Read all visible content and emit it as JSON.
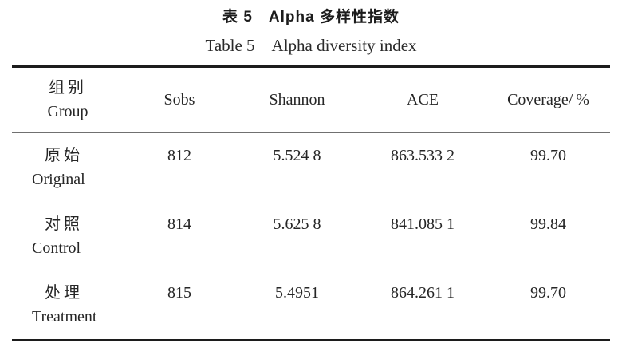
{
  "caption": {
    "zh": "表 5　Alpha 多样性指数",
    "en": "Table 5　Alpha diversity index"
  },
  "table": {
    "header": {
      "group_zh": "组别",
      "group_en": "Group",
      "sobs": "Sobs",
      "shannon": "Shannon",
      "ace": "ACE",
      "coverage": "Coverage/ %"
    },
    "rows": [
      {
        "group_zh": "原始",
        "group_en": "Original",
        "sobs": "812",
        "shannon": "5.524 8",
        "ace": "863.533 2",
        "coverage": "99.70"
      },
      {
        "group_zh": "对照",
        "group_en": "Control",
        "sobs": "814",
        "shannon": "5.625 8",
        "ace": "841.085 1",
        "coverage": "99.84"
      },
      {
        "group_zh": "处理",
        "group_en": "Treatment",
        "sobs": "815",
        "shannon": "5.4951",
        "ace": "864.261 1",
        "coverage": "99.70"
      }
    ]
  },
  "colors": {
    "background": "#ffffff",
    "text": "#262626",
    "rule_heavy": "#1c1c1c",
    "rule_light": "#707070"
  }
}
